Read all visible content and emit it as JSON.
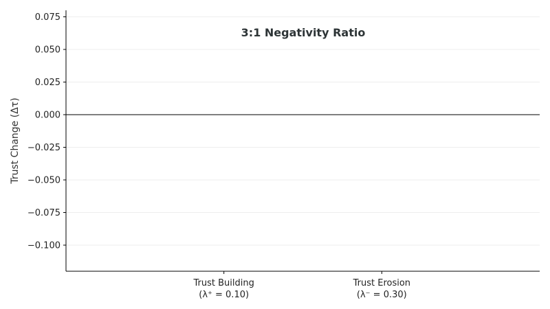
{
  "chart_data": {
    "type": "bar",
    "title": "",
    "annotation": "3:1 Negativity Ratio",
    "xlabel": "",
    "ylabel": "Trust Change (Δτ)",
    "categories": [
      {
        "line1": "Trust Building",
        "line2": "(λ⁺ = 0.10)"
      },
      {
        "line1": "Trust Erosion",
        "line2": "(λ⁻ = 0.30)"
      }
    ],
    "xlim": [
      -1.0,
      2.0
    ],
    "category_positions": [
      0,
      1
    ],
    "ylim": [
      -0.12,
      0.08
    ],
    "yticks": [
      0.075,
      0.05,
      0.025,
      0.0,
      -0.025,
      -0.05,
      -0.075,
      -0.1
    ],
    "ytick_labels": [
      "0.075",
      "0.050",
      "0.025",
      "0.000",
      "−0.025",
      "−0.050",
      "−0.075",
      "−0.100"
    ],
    "grid": true,
    "zero_line": true,
    "legend": "none",
    "colors": {
      "axis": "#000000",
      "zero_line": "#333333",
      "grid": "#eeeeee",
      "annotation": "#2d3436",
      "text": "#222222"
    }
  }
}
